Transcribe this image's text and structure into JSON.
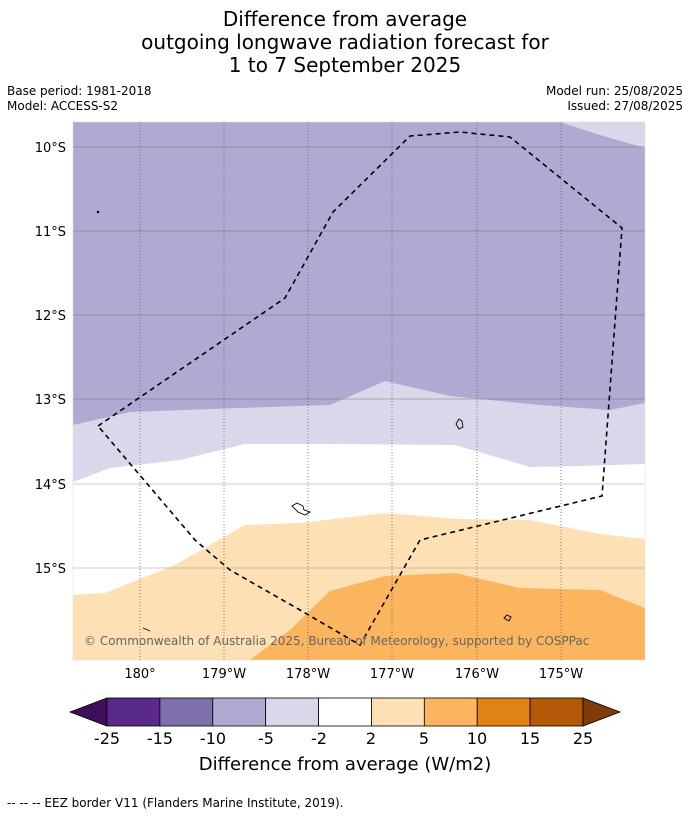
{
  "title": {
    "line1": "Difference from average",
    "line2": "outgoing longwave radiation forecast for",
    "line3": "1 to 7 September 2025"
  },
  "meta": {
    "base_period": "Base period: 1981-2018",
    "model": "Model: ACCESS-S2",
    "model_run": "Model run: 25/08/2025",
    "issued": "Issued: 27/08/2025"
  },
  "map": {
    "lat_labels": [
      "10°S",
      "11°S",
      "12°S",
      "13°S",
      "14°S",
      "15°S"
    ],
    "lon_labels": [
      "180°",
      "179°W",
      "178°W",
      "177°W",
      "176°W",
      "175°W"
    ],
    "copyright": "© Commonwealth of Australia 2025, Bureau of Meteorology, supported by COSPPac"
  },
  "colorbar": {
    "ticks": [
      "-25",
      "-15",
      "-10",
      "-5",
      "-2",
      "2",
      "5",
      "10",
      "15",
      "25"
    ],
    "colors": [
      "#3f0f5e",
      "#5a2a8a",
      "#7e6fad",
      "#b0a9d2",
      "#d8d8ea",
      "#ffffff",
      "#fde0b4",
      "#fbb55e",
      "#e08214",
      "#b35806",
      "#7f3b08"
    ],
    "label": "Difference from average (W/m2)"
  },
  "footnote": "--  --  -- EEZ border V11 (Flanders Marine Institute, 2019)."
}
